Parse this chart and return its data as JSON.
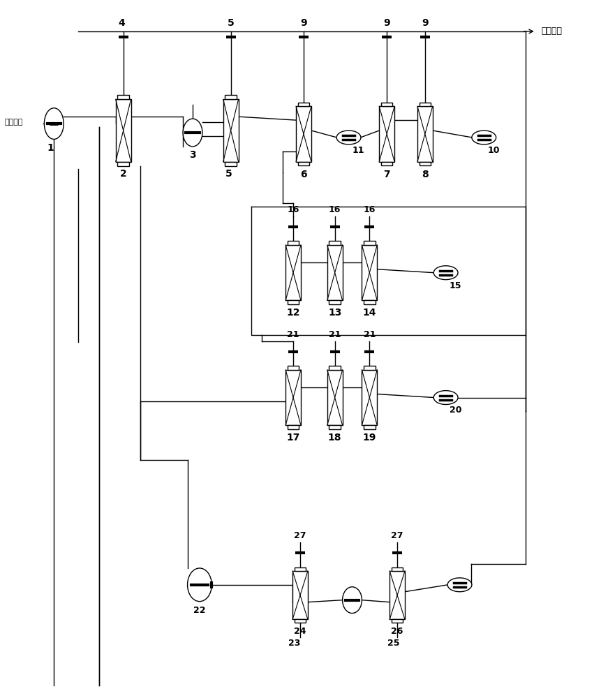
{
  "bg_color": "#ffffff",
  "line_color": "#000000",
  "inlet_label": "物料进口",
  "outlet_label": "尾气处理",
  "lw": 1.0
}
